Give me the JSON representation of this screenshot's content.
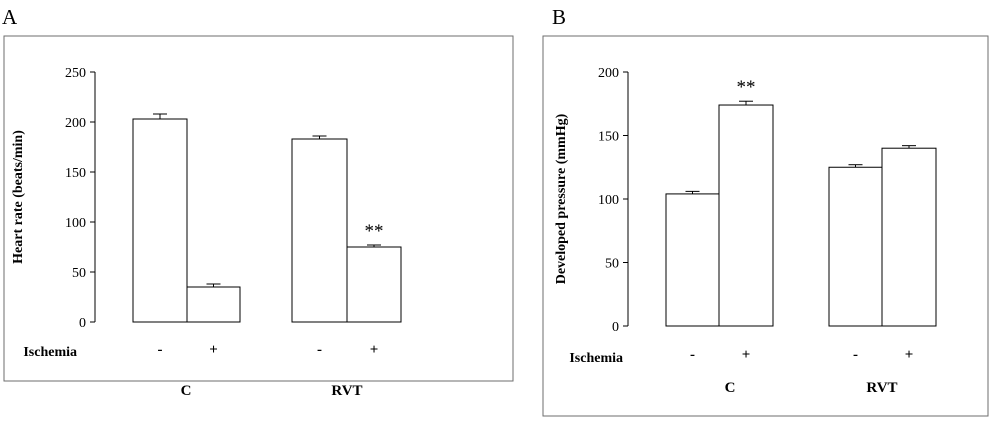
{
  "figure": {
    "panel_a_letter": "A",
    "panel_b_letter": "B"
  },
  "chart_data": [
    {
      "type": "bar",
      "panel": "A",
      "ylabel": "Heart rate (beats/min)",
      "ylim": [
        0,
        250
      ],
      "yticks": [
        "0",
        "50",
        "100",
        "150",
        "200",
        "250"
      ],
      "row_label": "Ischemia",
      "groups": [
        {
          "name": "C",
          "bars": [
            {
              "ischemia": "-",
              "value": 203,
              "error": 5
            },
            {
              "ischemia": "+",
              "value": 35,
              "error": 3,
              "sig": ""
            }
          ]
        },
        {
          "name": "RVT",
          "bars": [
            {
              "ischemia": "-",
              "value": 183,
              "error": 3
            },
            {
              "ischemia": "+",
              "value": 75,
              "error": 2,
              "sig": "**"
            }
          ]
        }
      ],
      "grid": false,
      "legend": "none"
    },
    {
      "type": "bar",
      "panel": "B",
      "ylabel": "Developed pressure (mmHg)",
      "ylim": [
        0,
        200
      ],
      "yticks": [
        "0",
        "50",
        "100",
        "150",
        "200"
      ],
      "row_label": "Ischemia",
      "groups": [
        {
          "name": "C",
          "bars": [
            {
              "ischemia": "-",
              "value": 104,
              "error": 2
            },
            {
              "ischemia": "+",
              "value": 174,
              "error": 3,
              "sig": "**"
            }
          ]
        },
        {
          "name": "RVT",
          "bars": [
            {
              "ischemia": "-",
              "value": 125,
              "error": 2
            },
            {
              "ischemia": "+",
              "value": 140,
              "error": 2,
              "sig": ""
            }
          ]
        }
      ],
      "grid": false,
      "legend": "none"
    }
  ]
}
